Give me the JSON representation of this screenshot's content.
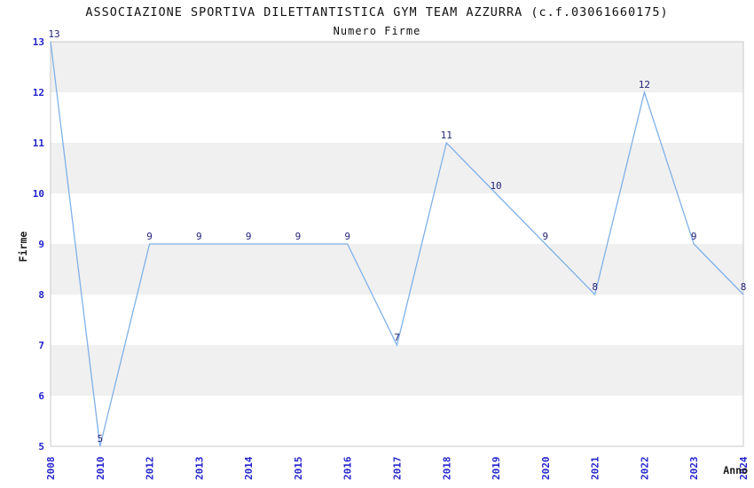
{
  "chart_data": {
    "type": "line",
    "title": "ASSOCIAZIONE SPORTIVA DILETTANTISTICA GYM TEAM AZZURRA (c.f.03061660175)",
    "subtitle": "Numero Firme",
    "xlabel": "Anno",
    "ylabel": "Firme",
    "categories": [
      "2008",
      "2010",
      "2012",
      "2013",
      "2014",
      "2015",
      "2016",
      "2017",
      "2018",
      "2019",
      "2020",
      "2021",
      "2022",
      "2023",
      "2024"
    ],
    "values": [
      13,
      5,
      9,
      9,
      9,
      9,
      9,
      7,
      11,
      10,
      9,
      8,
      12,
      9,
      8
    ],
    "point_labels": [
      "13",
      "5",
      "9",
      "9",
      "9",
      "9",
      "9",
      "7",
      "11",
      "10",
      "9",
      "8",
      "12",
      "9",
      "8"
    ],
    "ylim": [
      5,
      13
    ],
    "yticks": [
      5,
      6,
      7,
      8,
      9,
      10,
      11,
      12,
      13
    ],
    "grid": "alternating-horizontal-bands",
    "legend": "none",
    "colors": {
      "line": "#7FB0E8",
      "point_label": "#23237A",
      "tick_label": "#2323CC",
      "band": "#F0F0F0",
      "plot_border": "#C9C9C9",
      "background": "#FFFFFF",
      "title": "#111111"
    }
  }
}
